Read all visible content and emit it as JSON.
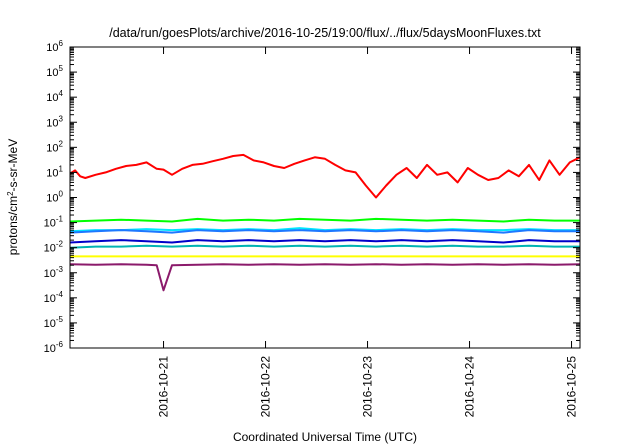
{
  "chart_data": {
    "type": "line",
    "title": "/data/run/goesPlots/archive/2016-10-25/19:00/flux/../flux/5daysMoonFluxes.txt",
    "xlabel": "Coordinated Universal Time (UTC)",
    "ylabel": "protons/cm2-s-sr-MeV",
    "ylabel_parts": {
      "base": "protons/cm",
      "sup": "2",
      "rest": "-s-sr-MeV"
    },
    "y_scale": "log",
    "ylim": [
      1e-06,
      1000000.0
    ],
    "y_ticks": [
      {
        "base": "10",
        "exp": "-6",
        "value": 1e-06
      },
      {
        "base": "10",
        "exp": "-5",
        "value": 1e-05
      },
      {
        "base": "10",
        "exp": "-4",
        "value": 0.0001
      },
      {
        "base": "10",
        "exp": "-3",
        "value": 0.001
      },
      {
        "base": "10",
        "exp": "-2",
        "value": 0.01
      },
      {
        "base": "10",
        "exp": "-1",
        "value": 0.1
      },
      {
        "base": "10",
        "exp": "0",
        "value": 1
      },
      {
        "base": "10",
        "exp": "1",
        "value": 10
      },
      {
        "base": "10",
        "exp": "2",
        "value": 100
      },
      {
        "base": "10",
        "exp": "3",
        "value": 1000
      },
      {
        "base": "10",
        "exp": "4",
        "value": 10000
      },
      {
        "base": "10",
        "exp": "5",
        "value": 100000
      },
      {
        "base": "10",
        "exp": "6",
        "value": 1000000
      }
    ],
    "xlim": [
      0,
      5
    ],
    "x_ticks": [
      {
        "label": "2016-10-21",
        "value": 0.917
      },
      {
        "label": "2016-10-22",
        "value": 1.917
      },
      {
        "label": "2016-10-23",
        "value": 2.917
      },
      {
        "label": "2016-10-24",
        "value": 3.917
      },
      {
        "label": "2016-10-25",
        "value": 4.917
      }
    ],
    "grid": false,
    "series": [
      {
        "color": "#ff0000",
        "x": [
          0,
          0.05,
          0.1,
          0.15,
          0.25,
          0.35,
          0.45,
          0.55,
          0.65,
          0.75,
          0.85,
          0.917,
          1.0,
          1.1,
          1.2,
          1.3,
          1.4,
          1.5,
          1.6,
          1.7,
          1.8,
          1.9,
          2.0,
          2.1,
          2.2,
          2.3,
          2.4,
          2.5,
          2.6,
          2.7,
          2.8,
          2.9,
          3.0,
          3.1,
          3.2,
          3.3,
          3.4,
          3.5,
          3.6,
          3.7,
          3.8,
          3.9,
          4.0,
          4.1,
          4.2,
          4.3,
          4.4,
          4.5,
          4.6,
          4.7,
          4.8,
          4.9,
          5.0
        ],
        "y": [
          9,
          12,
          7,
          6,
          8,
          10,
          14,
          18,
          20,
          25,
          14,
          13,
          8,
          14,
          20,
          22,
          28,
          35,
          45,
          50,
          30,
          25,
          18,
          15,
          22,
          30,
          40,
          35,
          20,
          12,
          10,
          3,
          1,
          3,
          8,
          15,
          6,
          20,
          8,
          10,
          4,
          15,
          8,
          5,
          6,
          12,
          7,
          20,
          5,
          30,
          8,
          25,
          40
        ]
      },
      {
        "color": "#00ff00",
        "x": [
          0,
          0.25,
          0.5,
          0.75,
          1.0,
          1.25,
          1.5,
          1.75,
          2.0,
          2.25,
          2.5,
          2.75,
          3.0,
          3.25,
          3.5,
          3.75,
          4.0,
          4.25,
          4.5,
          4.75,
          5.0
        ],
        "y": [
          0.11,
          0.12,
          0.13,
          0.12,
          0.11,
          0.14,
          0.12,
          0.13,
          0.12,
          0.14,
          0.13,
          0.12,
          0.14,
          0.13,
          0.12,
          0.13,
          0.12,
          0.11,
          0.13,
          0.12,
          0.12
        ]
      },
      {
        "color": "#00e5ff",
        "x": [
          0,
          0.25,
          0.5,
          0.75,
          1.0,
          1.25,
          1.5,
          1.75,
          2.0,
          2.25,
          2.5,
          2.75,
          3.0,
          3.25,
          3.5,
          3.75,
          4.0,
          4.25,
          4.5,
          4.75,
          5.0
        ],
        "y": [
          0.045,
          0.05,
          0.05,
          0.055,
          0.05,
          0.055,
          0.05,
          0.055,
          0.05,
          0.06,
          0.05,
          0.055,
          0.05,
          0.055,
          0.05,
          0.055,
          0.05,
          0.05,
          0.055,
          0.05,
          0.05
        ]
      },
      {
        "color": "#1e78ff",
        "x": [
          0,
          0.25,
          0.5,
          0.75,
          1.0,
          1.25,
          1.5,
          1.75,
          2.0,
          2.25,
          2.5,
          2.75,
          3.0,
          3.25,
          3.5,
          3.75,
          4.0,
          4.25,
          4.5,
          4.75,
          5.0
        ],
        "y": [
          0.04,
          0.045,
          0.05,
          0.045,
          0.04,
          0.05,
          0.045,
          0.05,
          0.045,
          0.05,
          0.045,
          0.05,
          0.045,
          0.05,
          0.045,
          0.05,
          0.045,
          0.04,
          0.05,
          0.045,
          0.045
        ]
      },
      {
        "color": "#00b3b3",
        "x": [
          0,
          0.25,
          0.5,
          0.75,
          1.0,
          1.25,
          1.5,
          1.75,
          2.0,
          2.25,
          2.5,
          2.75,
          3.0,
          3.25,
          3.5,
          3.75,
          4.0,
          4.25,
          4.5,
          4.75,
          5.0
        ],
        "y": [
          0.01,
          0.011,
          0.011,
          0.012,
          0.011,
          0.012,
          0.011,
          0.012,
          0.011,
          0.012,
          0.011,
          0.012,
          0.011,
          0.012,
          0.011,
          0.012,
          0.011,
          0.011,
          0.012,
          0.011,
          0.011
        ]
      },
      {
        "color": "#0000c8",
        "x": [
          0,
          0.25,
          0.5,
          0.75,
          1.0,
          1.25,
          1.5,
          1.75,
          2.0,
          2.25,
          2.5,
          2.75,
          3.0,
          3.25,
          3.5,
          3.75,
          4.0,
          4.25,
          4.5,
          4.75,
          5.0
        ],
        "y": [
          0.016,
          0.018,
          0.02,
          0.018,
          0.016,
          0.02,
          0.018,
          0.02,
          0.018,
          0.02,
          0.018,
          0.02,
          0.018,
          0.02,
          0.018,
          0.02,
          0.018,
          0.016,
          0.02,
          0.018,
          0.018
        ]
      },
      {
        "color": "#ffff00",
        "x": [
          0,
          0.25,
          0.5,
          0.75,
          1.0,
          1.25,
          1.5,
          1.75,
          2.0,
          2.25,
          2.5,
          2.75,
          3.0,
          3.25,
          3.5,
          3.75,
          4.0,
          4.25,
          4.5,
          4.75,
          5.0
        ],
        "y": [
          0.0045,
          0.0045,
          0.0045,
          0.0045,
          0.0045,
          0.0045,
          0.0045,
          0.0045,
          0.0045,
          0.0045,
          0.0045,
          0.0045,
          0.0045,
          0.0045,
          0.0045,
          0.0045,
          0.0045,
          0.0045,
          0.0045,
          0.0045,
          0.0045
        ]
      },
      {
        "color": "#8b1a6b",
        "x": [
          0,
          0.25,
          0.5,
          0.75,
          0.85,
          0.917,
          1.0,
          1.25,
          1.5,
          1.75,
          2.0,
          2.25,
          2.5,
          2.75,
          3.0,
          3.25,
          3.5,
          3.75,
          4.0,
          4.25,
          4.5,
          4.75,
          5.0
        ],
        "y": [
          0.0022,
          0.0021,
          0.0022,
          0.0021,
          0.002,
          0.0002,
          0.002,
          0.0021,
          0.0022,
          0.0021,
          0.0022,
          0.0021,
          0.0022,
          0.0021,
          0.0022,
          0.0021,
          0.0022,
          0.0021,
          0.0022,
          0.0021,
          0.0022,
          0.0021,
          0.0022
        ]
      }
    ]
  }
}
